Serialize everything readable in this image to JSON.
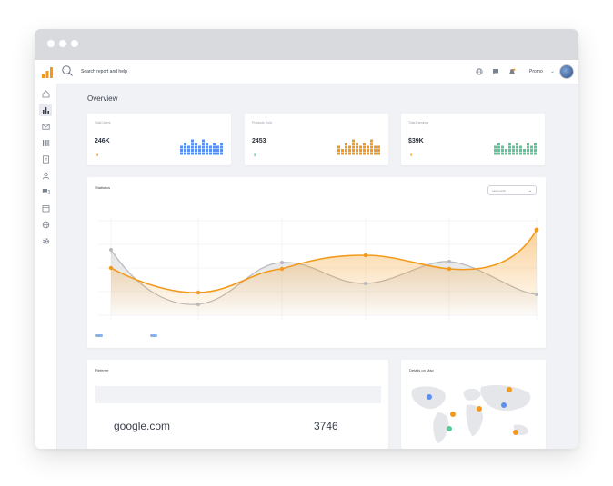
{
  "header": {
    "search_placeholder": "Search report and help",
    "profile_label": "Promo"
  },
  "icons": {
    "logo": "bar-chart-logo",
    "topbar": [
      "globe-icon",
      "chat-icon",
      "notification-icon"
    ],
    "sidebar": [
      "home-icon",
      "chart-icon",
      "mail-icon",
      "barcode-icon",
      "document-icon",
      "user-icon",
      "messages-icon",
      "calendar-icon",
      "globe-icon",
      "settings-icon"
    ]
  },
  "page": {
    "title": "Overview"
  },
  "stats": [
    {
      "label": "Total Users",
      "value": "246K",
      "accent": "#5b8ff0"
    },
    {
      "label": "Products Sold",
      "value": "2453",
      "accent": "#f39a1d"
    },
    {
      "label": "Total Earnings",
      "value": "$39K",
      "accent": "#5ac99a"
    }
  ],
  "statistics": {
    "title": "Statistics",
    "select_value": "Last month"
  },
  "referrer": {
    "title": "Referrer",
    "rows": [
      {
        "site": "google.com",
        "value": "3746"
      }
    ]
  },
  "map": {
    "title": "Details on Map"
  },
  "colors": {
    "orange": "#f39a1d",
    "gray_line": "#b9b9bd",
    "blue": "#5b8ff0",
    "green": "#5ac99a"
  }
}
